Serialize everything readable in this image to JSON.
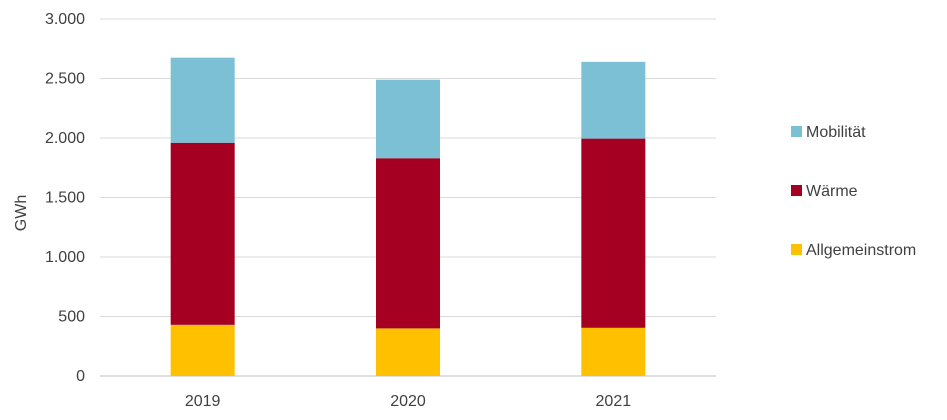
{
  "chart_data": {
    "type": "bar",
    "stacked": true,
    "categories": [
      "2019",
      "2020",
      "2021"
    ],
    "series": [
      {
        "name": "Allgemeinstrom",
        "values": [
          430,
          400,
          405
        ],
        "color": "#ffc000"
      },
      {
        "name": "Wärme",
        "values": [
          1530,
          1430,
          1590
        ],
        "color": "#a50021"
      },
      {
        "name": "Mobilität",
        "values": [
          715,
          660,
          645
        ],
        "color": "#7bc0d4"
      }
    ],
    "ylabel": "GWh",
    "ylim": [
      0,
      3000
    ],
    "y_ticks": [
      0,
      500,
      1000,
      1500,
      2000,
      2500,
      3000
    ],
    "y_tick_labels": [
      "0",
      "500",
      "1.000",
      "1.500",
      "2.000",
      "2.500",
      "3.000"
    ],
    "grid": true,
    "legend": {
      "placement": "right",
      "order": [
        "Mobilität",
        "Wärme",
        "Allgemeinstrom"
      ]
    }
  }
}
